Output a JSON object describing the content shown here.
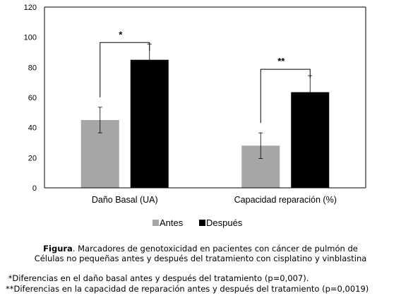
{
  "chart_data": {
    "type": "bar",
    "categories": [
      "Daño Basal (UA)",
      "Capacidad reparación (%)"
    ],
    "series": [
      {
        "name": "Antes",
        "color": "#a6a6a6",
        "values": [
          45,
          28
        ],
        "errors": [
          8.5,
          8.5
        ]
      },
      {
        "name": "Después",
        "color": "#000000",
        "values": [
          85,
          63.5
        ],
        "errors": [
          10.5,
          11
        ]
      }
    ],
    "ylim": [
      0,
      120
    ],
    "yticks": [
      0,
      20,
      40,
      60,
      80,
      100,
      120
    ],
    "significance": [
      "*",
      "**"
    ],
    "grid": false,
    "legend_position": "bottom"
  },
  "caption": {
    "label": "Figura",
    "text": ". Marcadores de genotoxicidad en pacientes con cáncer de pulmón de",
    "line2": "Células no pequeñas antes y después del tratamiento con cisplatino y vinblastina"
  },
  "notes": [
    " *Diferencias en el daño basal antes y después del tratamiento (p=0,007).",
    "**Diferencias en la capacidad de reparación antes y después del tratamiento (p=0,0019)"
  ]
}
